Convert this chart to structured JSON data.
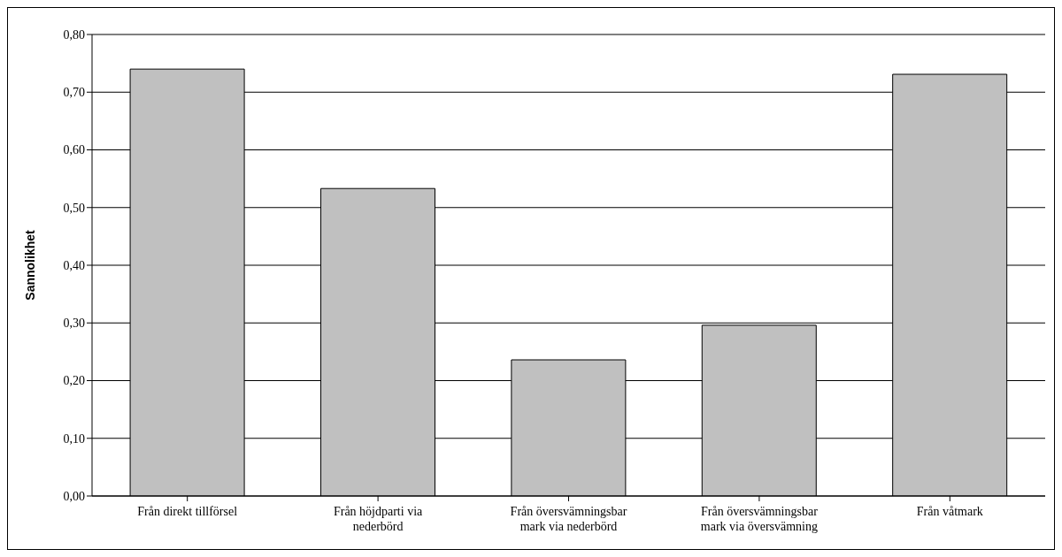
{
  "chart_data": {
    "type": "bar",
    "ylabel": "Sannolikhet",
    "categories": [
      "Från direkt tillförsel",
      "Från höjdparti via nederbörd",
      "Från översvämningsbar mark via nederbörd",
      "Från översvämningsbar mark via översvämning",
      "Från våtmark"
    ],
    "values": [
      0.74,
      0.533,
      0.236,
      0.296,
      0.731
    ],
    "color": "#c0c0c0",
    "ylim": [
      0,
      0.8
    ],
    "yticks": [
      {
        "value": 0,
        "label": "0,00"
      },
      {
        "value": 0.1,
        "label": "0,10"
      },
      {
        "value": 0.2,
        "label": "0,20"
      },
      {
        "value": 0.3,
        "label": "0,30"
      },
      {
        "value": 0.4,
        "label": "0,40"
      },
      {
        "value": 0.5,
        "label": "0,50"
      },
      {
        "value": 0.6,
        "label": "0,60"
      },
      {
        "value": 0.7,
        "label": "0,70"
      },
      {
        "value": 0.8,
        "label": "0,80"
      }
    ],
    "grid": "y"
  }
}
